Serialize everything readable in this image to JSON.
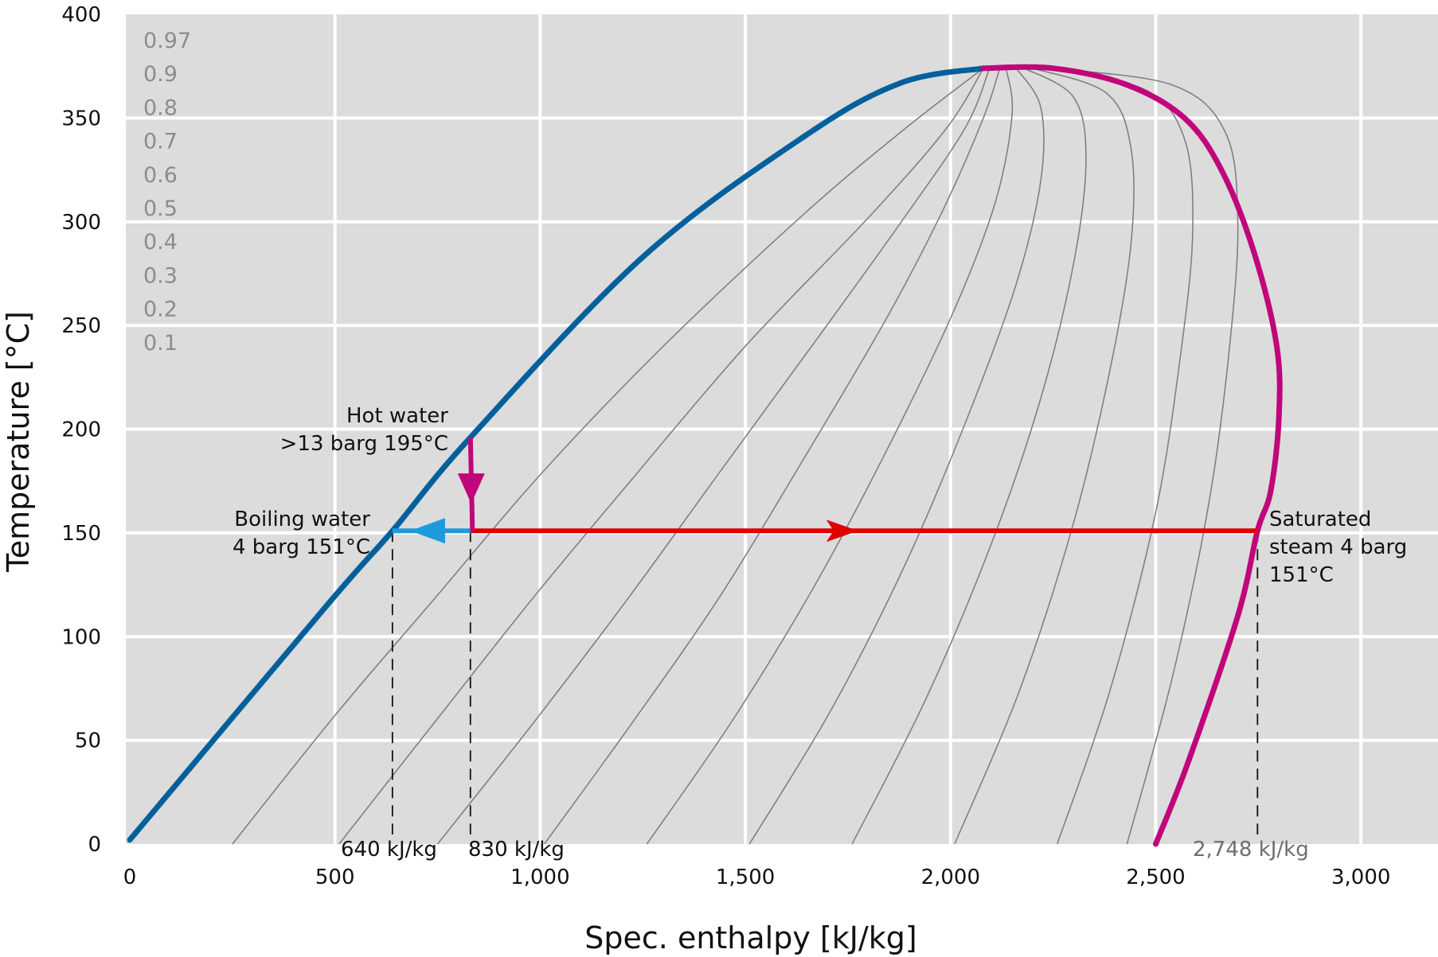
{
  "chart_data": {
    "type": "line",
    "title": "",
    "xlabel": "Spec. enthalpy [kJ/kg]",
    "ylabel": "Temperature [°C]",
    "xlim": [
      -5,
      3200
    ],
    "ylim": [
      0,
      400
    ],
    "grid": true,
    "x_ticks": [
      {
        "value": 0,
        "label": "0"
      },
      {
        "value": 500,
        "label": "500"
      },
      {
        "value": 1000,
        "label": "1,000"
      },
      {
        "value": 1500,
        "label": "1,500"
      },
      {
        "value": 2000,
        "label": "2,000"
      },
      {
        "value": 2500,
        "label": "2,500"
      },
      {
        "value": 3000,
        "label": "3,000"
      }
    ],
    "y_ticks": [
      {
        "value": 0,
        "label": "0"
      },
      {
        "value": 50,
        "label": "50"
      },
      {
        "value": 100,
        "label": "100"
      },
      {
        "value": 150,
        "label": "150"
      },
      {
        "value": 200,
        "label": "200"
      },
      {
        "value": 250,
        "label": "250"
      },
      {
        "value": 300,
        "label": "300"
      },
      {
        "value": 350,
        "label": "350"
      },
      {
        "value": 400,
        "label": "400"
      }
    ],
    "quality_labels": [
      "0.97",
      "0.9",
      "0.8",
      "0.7",
      "0.6",
      "0.5",
      "0.4",
      "0.3",
      "0.2",
      "0.1"
    ],
    "saturated_liquid_line": {
      "color": "#00609c",
      "points": [
        [
          0,
          2
        ],
        [
          480,
          115
        ],
        [
          640,
          151
        ],
        [
          830,
          196
        ],
        [
          1250,
          283
        ],
        [
          1650,
          342
        ],
        [
          1880,
          367
        ],
        [
          2080,
          374
        ]
      ]
    },
    "saturated_vapor_line": {
      "color": "#c0067a",
      "points": [
        [
          2080,
          374
        ],
        [
          2250,
          374
        ],
        [
          2430,
          366
        ],
        [
          2570,
          350
        ],
        [
          2660,
          325
        ],
        [
          2740,
          285
        ],
        [
          2795,
          240
        ],
        [
          2800,
          205
        ],
        [
          2780,
          170
        ],
        [
          2748,
          151
        ],
        [
          2700,
          110
        ],
        [
          2580,
          40
        ],
        [
          2500,
          0
        ]
      ]
    },
    "quality_lines": [
      {
        "quality": 0.1,
        "points": [
          [
            250,
            0
          ],
          [
            500,
            62
          ],
          [
            750,
            120
          ],
          [
            1000,
            178
          ],
          [
            1300,
            240
          ],
          [
            1650,
            305
          ],
          [
            1890,
            345
          ],
          [
            2080,
            374
          ]
        ]
      },
      {
        "quality": 0.2,
        "points": [
          [
            510,
            0
          ],
          [
            740,
            58
          ],
          [
            980,
            118
          ],
          [
            1220,
            175
          ],
          [
            1500,
            240
          ],
          [
            1800,
            302
          ],
          [
            1990,
            345
          ],
          [
            2080,
            374
          ]
        ]
      },
      {
        "quality": 0.3,
        "points": [
          [
            750,
            0
          ],
          [
            990,
            60
          ],
          [
            1220,
            120
          ],
          [
            1440,
            180
          ],
          [
            1680,
            245
          ],
          [
            1880,
            300
          ],
          [
            2035,
            345
          ],
          [
            2095,
            374
          ]
        ]
      },
      {
        "quality": 0.4,
        "points": [
          [
            1010,
            0
          ],
          [
            1230,
            60
          ],
          [
            1440,
            120
          ],
          [
            1640,
            185
          ],
          [
            1840,
            252
          ],
          [
            1980,
            305
          ],
          [
            2080,
            350
          ],
          [
            2120,
            374
          ]
        ]
      },
      {
        "quality": 0.5,
        "points": [
          [
            1260,
            0
          ],
          [
            1470,
            60
          ],
          [
            1670,
            125
          ],
          [
            1850,
            192
          ],
          [
            2010,
            258
          ],
          [
            2110,
            310
          ],
          [
            2150,
            352
          ],
          [
            2135,
            374
          ]
        ]
      },
      {
        "quality": 0.6,
        "points": [
          [
            1510,
            0
          ],
          [
            1710,
            65
          ],
          [
            1890,
            135
          ],
          [
            2040,
            205
          ],
          [
            2160,
            270
          ],
          [
            2220,
            320
          ],
          [
            2220,
            355
          ],
          [
            2160,
            374
          ]
        ]
      },
      {
        "quality": 0.7,
        "points": [
          [
            1760,
            0
          ],
          [
            1940,
            70
          ],
          [
            2100,
            145
          ],
          [
            2220,
            215
          ],
          [
            2300,
            280
          ],
          [
            2330,
            330
          ],
          [
            2300,
            360
          ],
          [
            2180,
            374
          ]
        ]
      },
      {
        "quality": 0.8,
        "points": [
          [
            2010,
            0
          ],
          [
            2170,
            75
          ],
          [
            2300,
            155
          ],
          [
            2390,
            230
          ],
          [
            2440,
            290
          ],
          [
            2440,
            335
          ],
          [
            2380,
            362
          ],
          [
            2200,
            374
          ]
        ]
      },
      {
        "quality": 0.9,
        "points": [
          [
            2260,
            0
          ],
          [
            2390,
            75
          ],
          [
            2500,
            160
          ],
          [
            2560,
            235
          ],
          [
            2590,
            295
          ],
          [
            2570,
            340
          ],
          [
            2470,
            364
          ],
          [
            2220,
            374
          ]
        ]
      },
      {
        "quality": 0.97,
        "points": [
          [
            2430,
            0
          ],
          [
            2540,
            80
          ],
          [
            2630,
            165
          ],
          [
            2680,
            240
          ],
          [
            2700,
            300
          ],
          [
            2670,
            343
          ],
          [
            2540,
            366
          ],
          [
            2240,
            374
          ]
        ]
      }
    ],
    "process": {
      "hot_water_drop": {
        "color": "#c0067a",
        "points": [
          [
            830,
            196
          ],
          [
            835,
            151
          ]
        ]
      },
      "flash": {
        "color": "#e00000",
        "points": [
          [
            830,
            151
          ],
          [
            2748,
            151
          ]
        ]
      },
      "boiling_water": {
        "color": "#1c9bdc",
        "points": [
          [
            830,
            151
          ],
          [
            640,
            151
          ]
        ]
      }
    },
    "reference_lines": [
      {
        "x": 640,
        "label": "640 kJ/kg"
      },
      {
        "x": 830,
        "label": "830 kJ/kg"
      },
      {
        "x": 2748,
        "label": "2,748 kJ/kg"
      }
    ],
    "annotations": {
      "hot_water": [
        "Hot water",
        ">13 barg 195°C"
      ],
      "boiling_water": [
        "Boiling water",
        "4 barg 151°C"
      ],
      "saturated_steam": [
        "Saturated",
        "steam 4 barg",
        "151°C"
      ]
    }
  }
}
